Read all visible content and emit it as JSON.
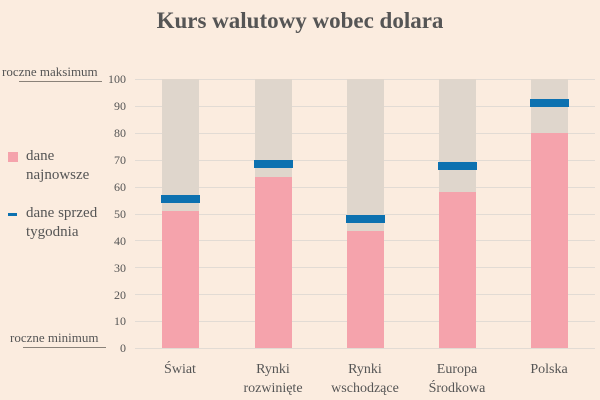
{
  "title": "Kurs walutowy wobec dolara",
  "annotations": {
    "top": "roczne maksimum",
    "bottom": "roczne minimum"
  },
  "legend": [
    {
      "label_line1": "dane",
      "label_line2": "najnowsze",
      "color": "#F5A3AC",
      "marker": "square"
    },
    {
      "label_line1": "dane sprzed",
      "label_line2": "tygodnia",
      "color": "#0C71B0",
      "marker": "dash"
    }
  ],
  "y_ticks": [
    "100",
    "90",
    "80",
    "70",
    "60",
    "50",
    "40",
    "30",
    "20",
    "10",
    "0"
  ],
  "categories": [
    {
      "line1": "Świat",
      "line2": ""
    },
    {
      "line1": "Rynki",
      "line2": "rozwinięte"
    },
    {
      "line1": "Rynki",
      "line2": "wschodzące"
    },
    {
      "line1": "Europa",
      "line2": "Środkowa"
    },
    {
      "line1": "Polska",
      "line2": ""
    }
  ],
  "colors": {
    "background": "#FBECDF",
    "range": "#DFD6CC",
    "latest": "#F5A3AC",
    "week_ago": "#0C71B0"
  },
  "chart_data": {
    "type": "bar",
    "title": "Kurs walutowy wobec dolara",
    "xlabel": "",
    "ylabel": "",
    "ylim": [
      0,
      100
    ],
    "y_annotations": {
      "100": "roczne maksimum",
      "0": "roczne minimum"
    },
    "categories": [
      "Świat",
      "Rynki rozwinięte",
      "Rynki wschodzące",
      "Europa Środkowa",
      "Polska"
    ],
    "series": [
      {
        "name": "dane najnowsze",
        "type": "bar",
        "values": [
          51,
          63.5,
          43.5,
          58,
          80
        ]
      },
      {
        "name": "dane sprzed tygodnia",
        "type": "marker",
        "values": [
          55.5,
          68.5,
          48,
          67.5,
          91
        ]
      }
    ],
    "range_background": [
      100,
      100,
      100,
      100,
      100
    ],
    "grid": true,
    "legend_position": "left"
  }
}
